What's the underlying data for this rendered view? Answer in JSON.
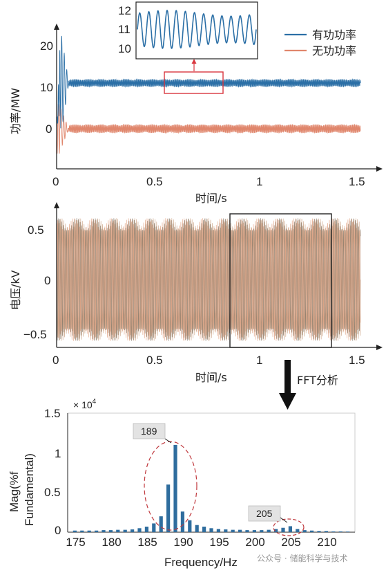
{
  "colors": {
    "active": "#2b6fa6",
    "reactive": "#e0866c",
    "voltage": "#b58b6a",
    "bars": "#2f6d9e",
    "highlight": "#d9363e",
    "axis": "#222222"
  },
  "chart_data": [
    {
      "type": "line",
      "ylabel": "功率/MW",
      "xlabel": "时间/s",
      "xlim": [
        0,
        1.5
      ],
      "ylim": [
        -2.5,
        25
      ],
      "xticks": [
        "0",
        "0.5",
        "1",
        "1.5"
      ],
      "yticks": [
        "0",
        "10",
        "20"
      ],
      "series": [
        {
          "name": "有功功率",
          "steady_mean": 11.0,
          "oscillation_amplitude": 0.9,
          "startup_peak": 24
        },
        {
          "name": "无功功率",
          "steady_mean": 0.0,
          "oscillation_amplitude": 1.0,
          "startup_min": -5
        }
      ],
      "inset": {
        "yticks": [
          "12",
          "11",
          "10"
        ],
        "ylim": [
          9.6,
          12.4
        ],
        "xrange": [
          0.53,
          0.82
        ]
      }
    },
    {
      "type": "line",
      "ylabel": "电压/kV",
      "xlabel": "时间/s",
      "xlim": [
        0,
        1.5
      ],
      "ylim": [
        -0.6,
        0.6
      ],
      "xticks": [
        "0",
        "0.5",
        "1",
        "1.5"
      ],
      "yticks": [
        "0.5",
        "0",
        "−0.5"
      ],
      "amplitude_range": [
        0.48,
        0.6
      ],
      "fft_window": [
        0.85,
        1.35
      ],
      "annotation": "FFT分析"
    },
    {
      "type": "bar",
      "ylabel_line1": "Mag(%f",
      "ylabel_line2": "Fundamental)",
      "xlabel": "Frequency/Hz",
      "exponent": "× 10",
      "exponent_power": "4",
      "xticks": [
        "175",
        "180",
        "185",
        "190",
        "195",
        "200",
        "205",
        "210"
      ],
      "yticks": [
        "1.5",
        "1",
        "0.5",
        "0"
      ],
      "xlim": [
        174,
        214
      ],
      "ylim": [
        0,
        1.5
      ],
      "frequencies": [
        175,
        176,
        177,
        178,
        179,
        180,
        181,
        182,
        183,
        184,
        185,
        186,
        187,
        188,
        189,
        190,
        191,
        192,
        193,
        194,
        195,
        196,
        197,
        198,
        199,
        200,
        201,
        202,
        203,
        204,
        205,
        206,
        207,
        208,
        209,
        210,
        211,
        212,
        213
      ],
      "values": [
        0.02,
        0.02,
        0.02,
        0.02,
        0.025,
        0.025,
        0.03,
        0.03,
        0.035,
        0.05,
        0.07,
        0.11,
        0.2,
        0.6,
        1.1,
        0.26,
        0.15,
        0.09,
        0.07,
        0.05,
        0.04,
        0.035,
        0.03,
        0.03,
        0.025,
        0.025,
        0.025,
        0.03,
        0.04,
        0.055,
        0.075,
        0.04,
        0.025,
        0.02,
        0.015,
        0.015,
        0.01,
        0.01,
        0.008
      ],
      "callouts": [
        "189",
        "205"
      ]
    }
  ],
  "watermark": "公众号 · 储能科学与技术"
}
